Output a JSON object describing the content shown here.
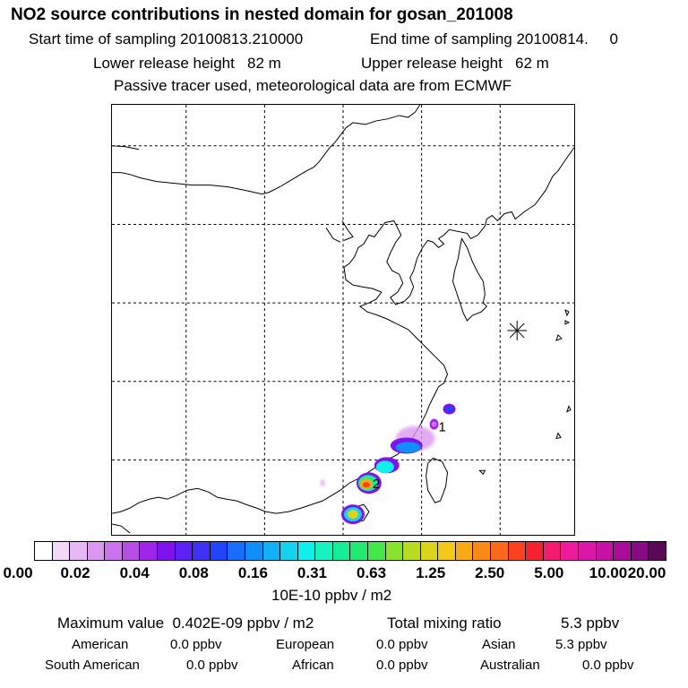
{
  "header": {
    "title": "NO2 source contributions in nested domain for gosan_201008",
    "start_sampling": "Start time of sampling 20100813.210000",
    "end_sampling": "End time of sampling 20100814.     0",
    "lower_release": "Lower release height   82 m",
    "upper_release": "Upper release height   62 m",
    "tracer_note": "Passive tracer used, meteorological data are from ECMWF"
  },
  "map": {
    "receptor_marker": "receptor-star",
    "source_labels": [
      "1",
      "2"
    ]
  },
  "colorbar": {
    "colors": [
      "#ffffff",
      "#f4d8fb",
      "#e8b8f6",
      "#dc98f1",
      "#cc72ee",
      "#b84ee8",
      "#a025ea",
      "#7f12ef",
      "#5f20f5",
      "#3c32f8",
      "#2245fb",
      "#1a6cfb",
      "#118ff9",
      "#10b1f6",
      "#14d3ef",
      "#0ef0ec",
      "#17f2c0",
      "#14ee96",
      "#20ea6f",
      "#45e84a",
      "#88e22e",
      "#b8dc20",
      "#dcd41a",
      "#f4c818",
      "#f8aa16",
      "#fa8a18",
      "#fb6a1c",
      "#fb4220",
      "#f8202e",
      "#f41c6e",
      "#ee1c9c",
      "#dc16aa",
      "#c810a6",
      "#a80c98",
      "#880a84",
      "#5c0858"
    ],
    "tick_labels": [
      "0.00",
      "0.02",
      "0.04",
      "0.08",
      "0.16",
      "0.31",
      "0.63",
      "1.25",
      "2.50",
      "5.00",
      "10.00",
      "20.00"
    ],
    "unit": "10E-10 ppbv / m2"
  },
  "summary": {
    "max_value": "Maximum value  0.402E-09 ppbv / m2",
    "total_label": "Total mixing ratio",
    "total_value": "5.3 ppbv"
  },
  "regions": [
    {
      "name": "American",
      "value": "0.0 ppbv"
    },
    {
      "name": "European",
      "value": "0.0 ppbv"
    },
    {
      "name": "Asian",
      "value": "5.3 ppbv"
    },
    {
      "name": "South American",
      "value": "0.0 ppbv"
    },
    {
      "name": "African",
      "value": "0.0 ppbv"
    },
    {
      "name": "Australian",
      "value": "0.0 ppbv"
    }
  ]
}
